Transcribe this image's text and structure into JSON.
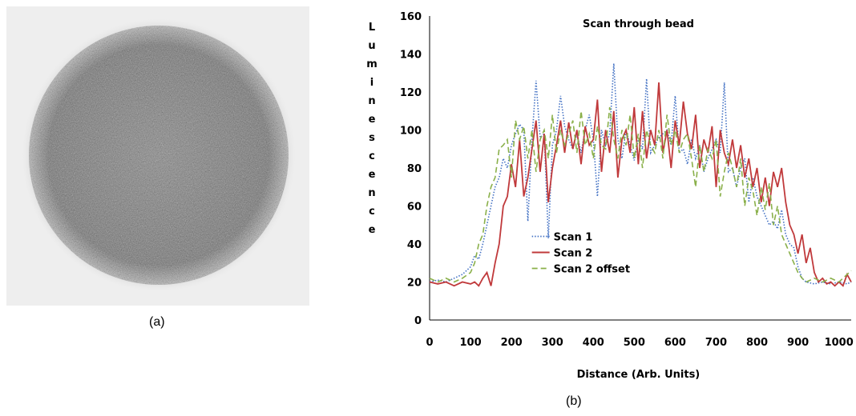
{
  "captions": {
    "a": "(a)",
    "b": "(b)"
  },
  "bead_image": {
    "description_color": "#6f6f6f"
  },
  "chart_data": {
    "type": "line",
    "title": "Scan  through bead",
    "xlabel": "Distance (Arb. Units)",
    "ylabel": "Luminescence",
    "xlim": [
      0,
      1030
    ],
    "ylim": [
      0,
      160
    ],
    "xticks": [
      0,
      100,
      200,
      300,
      400,
      500,
      600,
      700,
      800,
      900,
      1000
    ],
    "yticks": [
      0,
      20,
      40,
      60,
      80,
      100,
      120,
      140,
      160
    ],
    "grid": false,
    "legend_position": "center-left",
    "series": [
      {
        "name": "Scan  1",
        "color": "#4472c4",
        "style": "dotted",
        "points": [
          [
            0,
            20
          ],
          [
            20,
            21
          ],
          [
            40,
            20
          ],
          [
            60,
            22
          ],
          [
            80,
            24
          ],
          [
            100,
            28
          ],
          [
            110,
            34
          ],
          [
            120,
            32
          ],
          [
            130,
            40
          ],
          [
            140,
            50
          ],
          [
            150,
            60
          ],
          [
            160,
            70
          ],
          [
            170,
            75
          ],
          [
            180,
            85
          ],
          [
            190,
            80
          ],
          [
            200,
            92
          ],
          [
            210,
            98
          ],
          [
            220,
            103
          ],
          [
            230,
            100
          ],
          [
            240,
            52
          ],
          [
            250,
            95
          ],
          [
            260,
            126
          ],
          [
            270,
            96
          ],
          [
            280,
            98
          ],
          [
            290,
            43
          ],
          [
            300,
            92
          ],
          [
            310,
            100
          ],
          [
            320,
            118
          ],
          [
            330,
            102
          ],
          [
            340,
            95
          ],
          [
            350,
            90
          ],
          [
            360,
            98
          ],
          [
            370,
            88
          ],
          [
            380,
            100
          ],
          [
            390,
            108
          ],
          [
            400,
            95
          ],
          [
            410,
            65
          ],
          [
            420,
            100
          ],
          [
            430,
            92
          ],
          [
            440,
            98
          ],
          [
            450,
            135
          ],
          [
            460,
            95
          ],
          [
            470,
            85
          ],
          [
            480,
            100
          ],
          [
            490,
            92
          ],
          [
            500,
            84
          ],
          [
            510,
            95
          ],
          [
            520,
            90
          ],
          [
            530,
            127
          ],
          [
            540,
            88
          ],
          [
            550,
            92
          ],
          [
            560,
            96
          ],
          [
            570,
            98
          ],
          [
            580,
            100
          ],
          [
            590,
            92
          ],
          [
            600,
            118
          ],
          [
            610,
            88
          ],
          [
            620,
            90
          ],
          [
            630,
            82
          ],
          [
            640,
            95
          ],
          [
            650,
            85
          ],
          [
            660,
            92
          ],
          [
            670,
            78
          ],
          [
            680,
            85
          ],
          [
            690,
            90
          ],
          [
            700,
            95
          ],
          [
            710,
            88
          ],
          [
            720,
            125
          ],
          [
            730,
            78
          ],
          [
            740,
            80
          ],
          [
            750,
            70
          ],
          [
            760,
            80
          ],
          [
            770,
            85
          ],
          [
            780,
            62
          ],
          [
            790,
            75
          ],
          [
            800,
            65
          ],
          [
            810,
            60
          ],
          [
            820,
            55
          ],
          [
            830,
            50
          ],
          [
            840,
            52
          ],
          [
            850,
            48
          ],
          [
            860,
            58
          ],
          [
            870,
            45
          ],
          [
            880,
            40
          ],
          [
            890,
            38
          ],
          [
            900,
            28
          ],
          [
            910,
            22
          ],
          [
            920,
            20
          ],
          [
            940,
            19
          ],
          [
            960,
            20
          ],
          [
            980,
            19
          ],
          [
            1000,
            20
          ],
          [
            1020,
            19
          ],
          [
            1030,
            20
          ]
        ]
      },
      {
        "name": "Scan  2",
        "color": "#c0393b",
        "style": "solid",
        "points": [
          [
            0,
            20
          ],
          [
            20,
            19
          ],
          [
            40,
            20
          ],
          [
            60,
            18
          ],
          [
            80,
            20
          ],
          [
            100,
            19
          ],
          [
            110,
            20
          ],
          [
            120,
            18
          ],
          [
            130,
            22
          ],
          [
            140,
            25
          ],
          [
            150,
            18
          ],
          [
            160,
            30
          ],
          [
            170,
            40
          ],
          [
            180,
            60
          ],
          [
            190,
            65
          ],
          [
            200,
            82
          ],
          [
            210,
            70
          ],
          [
            220,
            95
          ],
          [
            230,
            65
          ],
          [
            240,
            75
          ],
          [
            250,
            90
          ],
          [
            260,
            105
          ],
          [
            270,
            78
          ],
          [
            280,
            98
          ],
          [
            290,
            62
          ],
          [
            300,
            80
          ],
          [
            310,
            92
          ],
          [
            320,
            105
          ],
          [
            330,
            88
          ],
          [
            340,
            104
          ],
          [
            350,
            90
          ],
          [
            360,
            100
          ],
          [
            370,
            82
          ],
          [
            380,
            102
          ],
          [
            390,
            92
          ],
          [
            400,
            95
          ],
          [
            410,
            116
          ],
          [
            420,
            78
          ],
          [
            430,
            100
          ],
          [
            440,
            88
          ],
          [
            450,
            110
          ],
          [
            460,
            75
          ],
          [
            470,
            95
          ],
          [
            480,
            100
          ],
          [
            490,
            88
          ],
          [
            500,
            112
          ],
          [
            510,
            82
          ],
          [
            520,
            110
          ],
          [
            530,
            85
          ],
          [
            540,
            100
          ],
          [
            550,
            92
          ],
          [
            560,
            125
          ],
          [
            570,
            88
          ],
          [
            580,
            100
          ],
          [
            590,
            80
          ],
          [
            600,
            105
          ],
          [
            610,
            92
          ],
          [
            620,
            115
          ],
          [
            630,
            98
          ],
          [
            640,
            90
          ],
          [
            650,
            108
          ],
          [
            660,
            80
          ],
          [
            670,
            95
          ],
          [
            680,
            88
          ],
          [
            690,
            102
          ],
          [
            700,
            70
          ],
          [
            710,
            100
          ],
          [
            720,
            88
          ],
          [
            730,
            82
          ],
          [
            740,
            95
          ],
          [
            750,
            80
          ],
          [
            760,
            92
          ],
          [
            770,
            75
          ],
          [
            780,
            85
          ],
          [
            790,
            70
          ],
          [
            800,
            80
          ],
          [
            810,
            62
          ],
          [
            820,
            75
          ],
          [
            830,
            60
          ],
          [
            840,
            78
          ],
          [
            850,
            70
          ],
          [
            860,
            80
          ],
          [
            870,
            62
          ],
          [
            880,
            50
          ],
          [
            890,
            45
          ],
          [
            900,
            35
          ],
          [
            910,
            45
          ],
          [
            920,
            30
          ],
          [
            930,
            38
          ],
          [
            940,
            25
          ],
          [
            950,
            20
          ],
          [
            960,
            22
          ],
          [
            970,
            19
          ],
          [
            980,
            20
          ],
          [
            990,
            18
          ],
          [
            1000,
            20
          ],
          [
            1010,
            18
          ],
          [
            1020,
            24
          ],
          [
            1030,
            20
          ]
        ]
      },
      {
        "name": "Scan  2 offset",
        "color": "#8ab04a",
        "style": "dashed",
        "points": [
          [
            0,
            22
          ],
          [
            20,
            20
          ],
          [
            40,
            22
          ],
          [
            60,
            20
          ],
          [
            80,
            22
          ],
          [
            100,
            25
          ],
          [
            110,
            30
          ],
          [
            120,
            40
          ],
          [
            130,
            45
          ],
          [
            140,
            60
          ],
          [
            150,
            70
          ],
          [
            160,
            75
          ],
          [
            170,
            90
          ],
          [
            180,
            92
          ],
          [
            190,
            95
          ],
          [
            200,
            75
          ],
          [
            210,
            105
          ],
          [
            220,
            95
          ],
          [
            230,
            102
          ],
          [
            240,
            85
          ],
          [
            250,
            100
          ],
          [
            260,
            78
          ],
          [
            270,
            95
          ],
          [
            280,
            100
          ],
          [
            290,
            85
          ],
          [
            300,
            108
          ],
          [
            310,
            88
          ],
          [
            320,
            100
          ],
          [
            330,
            92
          ],
          [
            340,
            98
          ],
          [
            350,
            105
          ],
          [
            360,
            88
          ],
          [
            370,
            110
          ],
          [
            380,
            92
          ],
          [
            390,
            98
          ],
          [
            400,
            85
          ],
          [
            410,
            102
          ],
          [
            420,
            92
          ],
          [
            430,
            90
          ],
          [
            440,
            112
          ],
          [
            450,
            95
          ],
          [
            460,
            85
          ],
          [
            470,
            100
          ],
          [
            480,
            92
          ],
          [
            490,
            108
          ],
          [
            500,
            85
          ],
          [
            510,
            98
          ],
          [
            520,
            80
          ],
          [
            530,
            100
          ],
          [
            540,
            92
          ],
          [
            550,
            88
          ],
          [
            560,
            100
          ],
          [
            570,
            85
          ],
          [
            580,
            108
          ],
          [
            590,
            92
          ],
          [
            600,
            100
          ],
          [
            610,
            88
          ],
          [
            620,
            95
          ],
          [
            630,
            98
          ],
          [
            640,
            85
          ],
          [
            650,
            70
          ],
          [
            660,
            92
          ],
          [
            670,
            78
          ],
          [
            680,
            90
          ],
          [
            690,
            85
          ],
          [
            700,
            95
          ],
          [
            710,
            65
          ],
          [
            720,
            78
          ],
          [
            730,
            88
          ],
          [
            740,
            80
          ],
          [
            750,
            70
          ],
          [
            760,
            85
          ],
          [
            770,
            60
          ],
          [
            780,
            75
          ],
          [
            790,
            68
          ],
          [
            800,
            55
          ],
          [
            810,
            70
          ],
          [
            820,
            58
          ],
          [
            830,
            72
          ],
          [
            840,
            50
          ],
          [
            850,
            60
          ],
          [
            860,
            45
          ],
          [
            870,
            40
          ],
          [
            880,
            35
          ],
          [
            890,
            30
          ],
          [
            900,
            25
          ],
          [
            910,
            22
          ],
          [
            920,
            20
          ],
          [
            940,
            22
          ],
          [
            960,
            20
          ],
          [
            980,
            22
          ],
          [
            1000,
            20
          ],
          [
            1020,
            24
          ],
          [
            1030,
            26
          ]
        ]
      }
    ]
  }
}
